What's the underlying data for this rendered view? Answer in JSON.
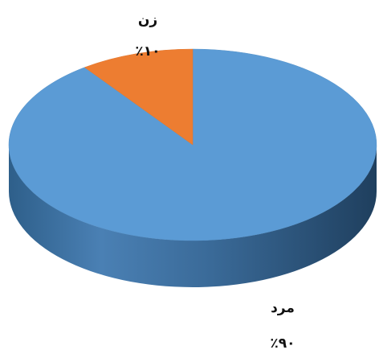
{
  "chart_data": {
    "type": "pie",
    "style": "3d",
    "slices": [
      {
        "label": "مرد",
        "value": 90,
        "value_label": "٪۹۰",
        "color": "#5B9BD5"
      },
      {
        "label": "زن",
        "value": 10,
        "value_label": "٪۱۰",
        "color": "#ED7D31"
      }
    ]
  }
}
